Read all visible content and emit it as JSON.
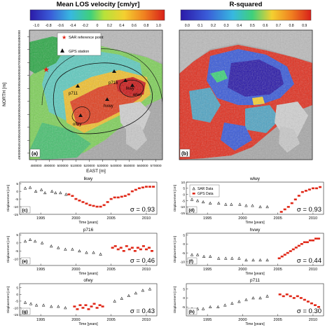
{
  "maps": {
    "a": {
      "title": "Mean LOS velocity [cm/yr]",
      "colorbar_ticks": [
        "-1.0",
        "-0.8",
        "-0.6",
        "-0.4",
        "-0.2",
        "0",
        "0.2",
        "0.4",
        "0.6",
        "0.8",
        "1.0"
      ],
      "xlabel": "EAST [m]",
      "ylabel": "NORTH [m]",
      "xticks": [
        "480000",
        "490000",
        "500000",
        "510000",
        "520000",
        "530000",
        "540000",
        "550000",
        "560000",
        "570000"
      ],
      "yticks": [
        "4990000",
        "4980000",
        "4970000",
        "4960000",
        "4950000",
        "4940000",
        "4930000",
        "4920000",
        "4910000",
        "4900000"
      ],
      "legend": [
        "SAR reference point",
        "GPS station"
      ],
      "stations": [
        "p716",
        "lkwy",
        "wlwy",
        "p711",
        "hvwy",
        "ofwy"
      ],
      "panel_label": "(a)"
    },
    "b": {
      "title": "R-squared",
      "colorbar_ticks": [
        "0.0",
        "0.1",
        "0.2",
        "0.3",
        "0.4",
        "0.5",
        "0.6",
        "0.7",
        "0.8",
        "0.9"
      ],
      "panel_label": "(b)"
    }
  },
  "timeseries_common": {
    "xlabel": "Time [years]",
    "ylabel": "Displacement [cm]",
    "xticks": [
      "1995",
      "2000",
      "2005",
      "2010"
    ],
    "legend": [
      "SAR Data",
      "GPS Data"
    ]
  },
  "chart_data": [
    {
      "type": "scatter",
      "panel": "(c)",
      "title": "lkwy",
      "sigma": "σ = 0.93",
      "xlim": [
        1992,
        2011.5
      ],
      "ylim": [
        -15,
        6
      ],
      "yticks": [
        "5",
        "0",
        "-5",
        "-10",
        "-15"
      ],
      "series": [
        {
          "name": "SAR Data",
          "x": [
            1992.8,
            1993.5,
            1994.3,
            1995.1,
            1995.6,
            1996.6,
            1997.1,
            1997.8,
            1998.6
          ],
          "y": [
            2,
            2.5,
            0,
            1,
            -1,
            0,
            -1,
            -1,
            -2
          ]
        },
        {
          "name": "GPS Data",
          "x": [
            1999,
            1999.5,
            2000,
            2000.5,
            2001,
            2001.5,
            2002,
            2002.5,
            2003,
            2003.5,
            2004,
            2004.5,
            2005,
            2005.5,
            2006,
            2006.5,
            2007,
            2007.5,
            2008,
            2008.5,
            2009,
            2009.5,
            2010,
            2010.5,
            2011
          ],
          "y": [
            -2,
            -3,
            -5,
            -6,
            -7,
            -8,
            -9,
            -9.5,
            -10,
            -10,
            -9,
            -7,
            -5,
            -4,
            -4,
            -3.5,
            -3,
            -2,
            0,
            1,
            2,
            2.5,
            3,
            3,
            3
          ]
        }
      ]
    },
    {
      "type": "scatter",
      "panel": "(d)",
      "title": "wlwy",
      "sigma": "σ = 0.93",
      "xlim": [
        1992,
        2011.5
      ],
      "ylim": [
        -16,
        10
      ],
      "yticks": [
        "10",
        "5",
        "0",
        "-5",
        "-10",
        "-15"
      ],
      "series": [
        {
          "name": "SAR Data",
          "x": [
            1992.8,
            1993.6,
            1994.4,
            1995.4,
            1996.6,
            1997.6,
            1998.4,
            1999.6,
            2000.5,
            2001.4,
            2002.5,
            2003.5
          ],
          "y": [
            -4,
            -5,
            -6,
            -7,
            -7,
            -8,
            -8,
            -8,
            -9,
            -9,
            -10,
            -10
          ]
        },
        {
          "name": "GPS Data",
          "x": [
            2005.5,
            2006,
            2006.5,
            2007,
            2007.5,
            2008,
            2008.5,
            2009,
            2009.5,
            2010,
            2010.5,
            2011
          ],
          "y": [
            -14,
            -12,
            -10,
            -7,
            -4,
            -1,
            2,
            3,
            4,
            5,
            5,
            6
          ]
        }
      ]
    },
    {
      "type": "scatter",
      "panel": "(e)",
      "title": "p716",
      "sigma": "σ = 0.46",
      "xlim": [
        1992,
        2011.5
      ],
      "ylim": [
        -14,
        6
      ],
      "yticks": [
        "5",
        "0",
        "-5",
        "-10"
      ],
      "series": [
        {
          "name": "SAR Data",
          "x": [
            1992.8,
            1993.5,
            1994.2,
            1995.2,
            1996.5,
            1997.5,
            1998.5,
            1999.5,
            2000.5,
            2001.5,
            2002.5,
            2003.5
          ],
          "y": [
            1,
            2,
            1,
            0,
            -2,
            -3,
            -4,
            -4,
            -5,
            -6,
            -6,
            -7
          ]
        },
        {
          "name": "GPS Data",
          "x": [
            2005.2,
            2005.6,
            2006,
            2006.4,
            2006.8,
            2007.2,
            2007.6,
            2008,
            2008.4,
            2008.8,
            2009.2,
            2009.6,
            2010,
            2010.4,
            2010.8
          ],
          "y": [
            -3,
            -2,
            -4,
            -3,
            -5,
            -2,
            -4,
            -3,
            -5,
            -3,
            -4,
            -2,
            -4,
            -3,
            -5
          ]
        }
      ]
    },
    {
      "type": "scatter",
      "panel": "(f)",
      "title": "hvwy",
      "sigma": "σ = 0.44",
      "xlim": [
        1992,
        2011.5
      ],
      "ylim": [
        -12,
        6
      ],
      "yticks": [
        "5",
        "0",
        "-5",
        "-10"
      ],
      "series": [
        {
          "name": "SAR Data",
          "x": [
            1992.8,
            1993.6,
            1994.5,
            1995.4,
            1996.6,
            1997.6,
            1998.5,
            1999.5,
            2000.5,
            2001.5,
            2002.5,
            2003.5
          ],
          "y": [
            -6,
            -6,
            -7,
            -7,
            -8,
            -8,
            -8,
            -8,
            -9,
            -9,
            -9,
            -9
          ]
        },
        {
          "name": "GPS Data",
          "x": [
            2005.2,
            2005.6,
            2006,
            2006.4,
            2006.8,
            2007.2,
            2007.6,
            2008,
            2008.4,
            2008.8,
            2009.2,
            2009.6,
            2010,
            2010.4,
            2010.8
          ],
          "y": [
            -8,
            -7,
            -6,
            -5,
            -4,
            -3,
            -2,
            -1,
            0,
            1,
            1,
            2,
            2,
            3,
            3
          ]
        }
      ]
    },
    {
      "type": "scatter",
      "panel": "(g)",
      "title": "ofwy",
      "sigma": "σ = 0.43",
      "xlim": [
        1992,
        2011.5
      ],
      "ylim": [
        -16,
        8
      ],
      "yticks": [
        "5",
        "0",
        "-5",
        "-10",
        "-15"
      ],
      "series": [
        {
          "name": "SAR Data",
          "x": [
            1992.8,
            1993.6,
            1994.4,
            1995.4,
            1996.5,
            1997.5,
            1998.5,
            2005.5,
            2006.5,
            2007.5,
            2008.5,
            2009.5,
            2010.5
          ],
          "y": [
            -6,
            -7,
            -8,
            -8,
            -9,
            -9,
            -10,
            -5,
            -3,
            -1,
            1,
            3,
            4
          ]
        },
        {
          "name": "GPS Data",
          "x": [
            1999.8,
            2000.2,
            2000.6,
            2001,
            2001.4,
            2001.8,
            2002.2,
            2002.6,
            2003,
            2003.4,
            2003.8
          ],
          "y": [
            -9,
            -11,
            -8,
            -10,
            -8,
            -11,
            -9,
            -7,
            -10,
            -8,
            -9
          ]
        }
      ]
    },
    {
      "type": "scatter",
      "panel": "(h)",
      "title": "p711",
      "sigma": "σ = 0.30",
      "xlim": [
        1992,
        2011.5
      ],
      "ylim": [
        -10,
        8
      ],
      "yticks": [
        "5",
        "0",
        "-5"
      ],
      "series": [
        {
          "name": "SAR Data",
          "x": [
            1992.8,
            1993.6,
            1994.4,
            1995.4,
            1996.5,
            1997.5,
            1998.5,
            1999.5,
            2000.5,
            2001.5,
            2002.5,
            2003.5
          ],
          "y": [
            -6,
            -6,
            -6,
            -5,
            -5,
            -4,
            -3,
            -2,
            -1,
            0,
            0,
            1
          ]
        },
        {
          "name": "GPS Data",
          "x": [
            2005.3,
            2005.8,
            2006.3,
            2006.8,
            2007.3,
            2007.8,
            2008.3,
            2008.8,
            2009.3,
            2009.8,
            2010.3,
            2010.8
          ],
          "y": [
            2,
            1,
            2,
            1,
            0,
            1,
            0,
            -1,
            -2,
            -3,
            -4,
            -5
          ]
        }
      ]
    }
  ]
}
